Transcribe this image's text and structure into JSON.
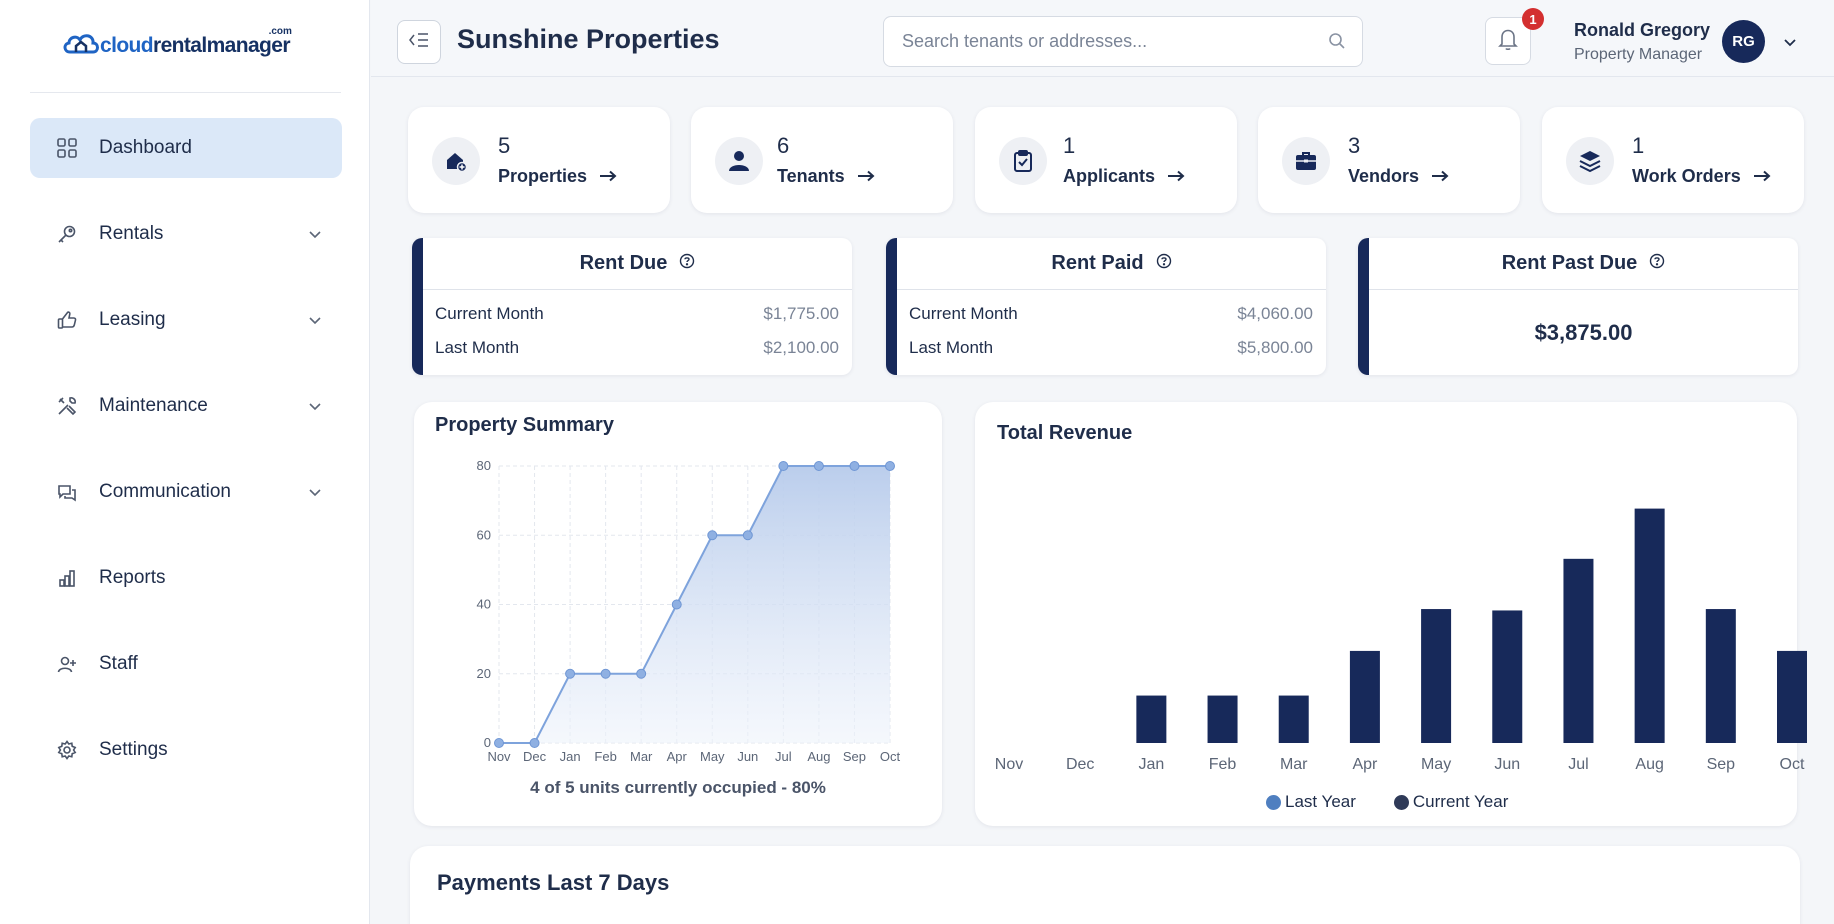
{
  "app": {
    "logo": {
      "part1": "cloud",
      "part2": "rentalmanager",
      "suffix": ".com"
    }
  },
  "sidebar": {
    "items": [
      {
        "label": "Dashboard",
        "icon": "grid-icon",
        "active": true,
        "expandable": false
      },
      {
        "label": "Rentals",
        "icon": "key-icon",
        "active": false,
        "expandable": true
      },
      {
        "label": "Leasing",
        "icon": "thumbs-up-icon",
        "active": false,
        "expandable": true
      },
      {
        "label": "Maintenance",
        "icon": "tools-icon",
        "active": false,
        "expandable": true
      },
      {
        "label": "Communication",
        "icon": "chat-icon",
        "active": false,
        "expandable": true
      },
      {
        "label": "Reports",
        "icon": "bar-chart-icon",
        "active": false,
        "expandable": false
      },
      {
        "label": "Staff",
        "icon": "user-plus-icon",
        "active": false,
        "expandable": false
      },
      {
        "label": "Settings",
        "icon": "gear-icon",
        "active": false,
        "expandable": false
      }
    ]
  },
  "header": {
    "title": "Sunshine Properties",
    "search_placeholder": "Search tenants or addresses...",
    "notifications": "1",
    "user": {
      "name": "Ronald Gregory",
      "role": "Property Manager",
      "initials": "RG"
    }
  },
  "stats": [
    {
      "count": "5",
      "label": "Properties",
      "icon": "house-plus-icon"
    },
    {
      "count": "6",
      "label": "Tenants",
      "icon": "person-icon"
    },
    {
      "count": "1",
      "label": "Applicants",
      "icon": "clipboard-check-icon"
    },
    {
      "count": "3",
      "label": "Vendors",
      "icon": "briefcase-icon"
    },
    {
      "count": "1",
      "label": "Work Orders",
      "icon": "layers-icon"
    }
  ],
  "rent": {
    "due": {
      "title": "Rent Due",
      "rows": [
        {
          "k": "Current Month",
          "v": "$1,775.00"
        },
        {
          "k": "Last Month",
          "v": "$2,100.00"
        }
      ]
    },
    "paid": {
      "title": "Rent Paid",
      "rows": [
        {
          "k": "Current Month",
          "v": "$4,060.00"
        },
        {
          "k": "Last Month",
          "v": "$5,800.00"
        }
      ]
    },
    "past_due": {
      "title": "Rent Past Due",
      "amount": "$3,875.00"
    }
  },
  "property_summary": {
    "title": "Property Summary",
    "occupancy": "4 of 5 units currently occupied - 80%"
  },
  "total_revenue": {
    "title": "Total Revenue"
  },
  "payments": {
    "title": "Payments Last 7 Days"
  },
  "colors": {
    "navy": "#17295a",
    "accent_blue": "#dbe8f8",
    "line_blue": "#7ea3dc",
    "legend_last_year": "#4f7fc0",
    "legend_current_year": "#2f3a58",
    "badge_red": "#d32f2f"
  },
  "chart_data": [
    {
      "type": "area",
      "title": "Property Summary",
      "categories": [
        "Nov",
        "Dec",
        "Jan",
        "Feb",
        "Mar",
        "Apr",
        "May",
        "Jun",
        "Jul",
        "Aug",
        "Sep",
        "Oct"
      ],
      "values": [
        0,
        0,
        20,
        20,
        20,
        40,
        60,
        60,
        80,
        80,
        80,
        80
      ],
      "ylim": [
        0,
        80
      ],
      "yticks": [
        "0",
        "20",
        "40",
        "60",
        "80"
      ],
      "grid": true
    },
    {
      "type": "bar",
      "title": "Total Revenue",
      "categories": [
        "Nov",
        "Dec",
        "Jan",
        "Feb",
        "Mar",
        "Apr",
        "May",
        "Jun",
        "Jul",
        "Aug",
        "Sep",
        "Oct"
      ],
      "series": [
        {
          "name": "Last Year",
          "values": [
            0,
            0,
            0,
            0,
            0,
            0,
            0,
            0,
            0,
            0,
            0,
            0
          ]
        },
        {
          "name": "Current Year",
          "values": [
            0,
            0,
            1700,
            1700,
            1700,
            3300,
            4800,
            4750,
            6600,
            8400,
            4800,
            3300
          ]
        }
      ],
      "ylim": [
        0,
        10500
      ],
      "legend": "bottom",
      "grid": false
    }
  ]
}
